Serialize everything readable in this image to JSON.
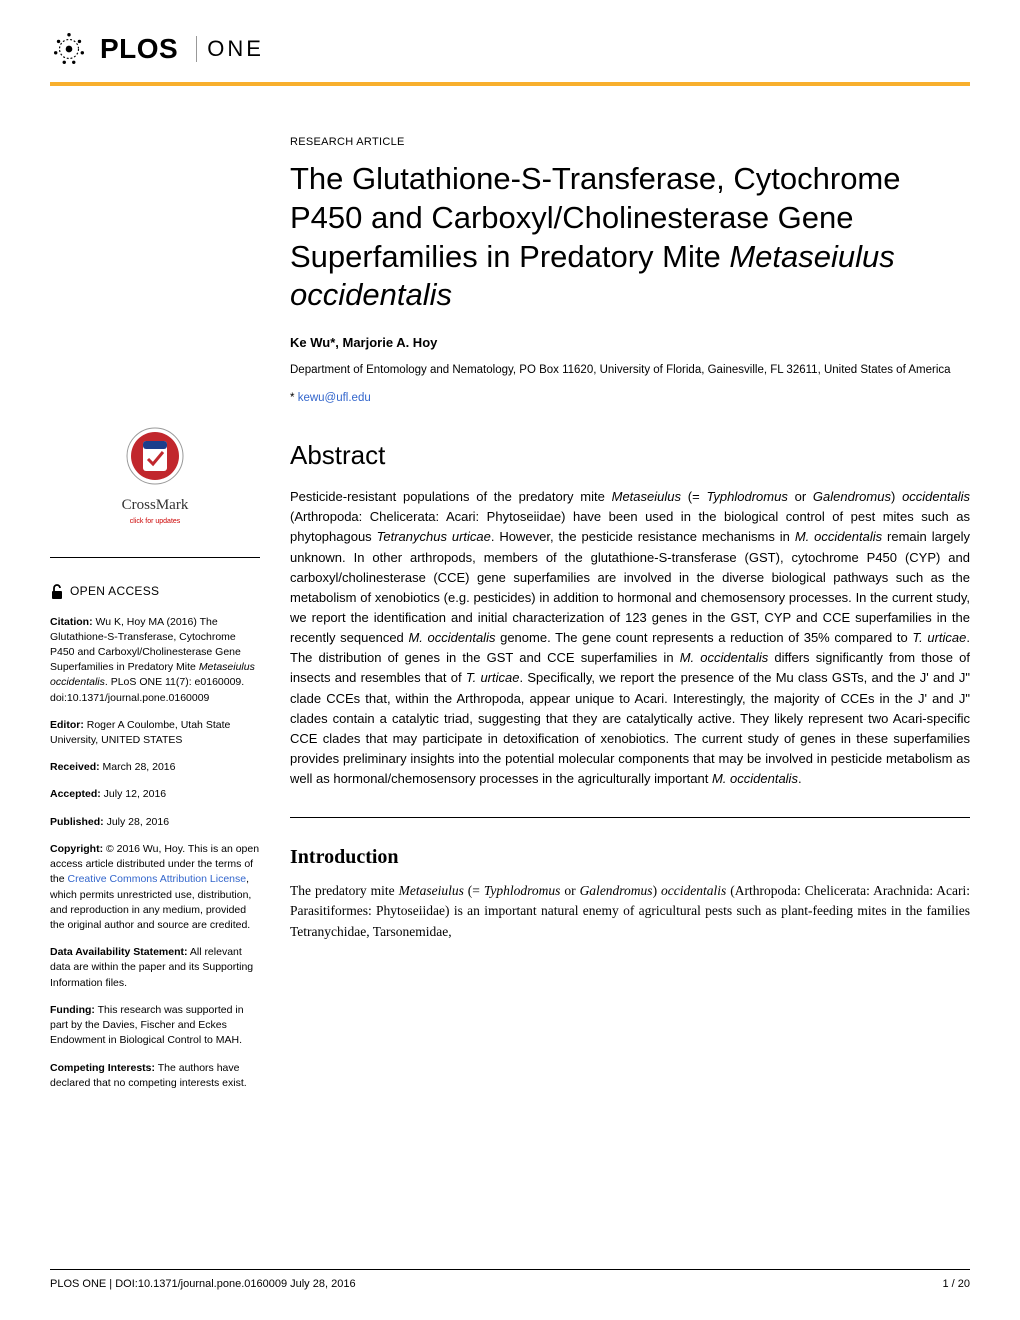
{
  "journal": {
    "logo_primary": "PLOS",
    "logo_secondary": "ONE",
    "accent_color": "#f8af2d"
  },
  "article": {
    "type": "RESEARCH ARTICLE",
    "title_pre": "The Glutathione-S-Transferase, Cytochrome P450 and Carboxyl/Cholinesterase Gene Superfamilies in Predatory Mite ",
    "title_ital": "Metaseiulus occidentalis",
    "authors": "Ke Wu*, Marjorie A. Hoy",
    "affiliation": "Department of Entomology and Nematology, PO Box 11620, University of Florida, Gainesville, FL 32611, United States of America",
    "corr_symbol": "*",
    "corr_email": "kewu@ufl.edu"
  },
  "abstract": {
    "heading": "Abstract",
    "body_html": "Pesticide-resistant populations of the predatory mite <span class='ital'>Metaseiulus</span> (= <span class='ital'>Typhlodromus</span> or <span class='ital'>Galendromus</span>) <span class='ital'>occidentalis</span> (Arthropoda: Chelicerata: Acari: Phytoseiidae) have been used in the biological control of pest mites such as phytophagous <span class='ital'>Tetranychus urticae</span>. However, the pesticide resistance mechanisms in <span class='ital'>M. occidentalis</span> remain largely unknown. In other arthropods, members of the glutathione-S-transferase (GST), cytochrome P450 (CYP) and carboxyl/cholinesterase (CCE) gene superfamilies are involved in the diverse biological pathways such as the metabolism of xenobiotics (e.g. pesticides) in addition to hormonal and chemosensory processes. In the current study, we report the identification and initial characterization of 123 genes in the GST, CYP and CCE superfamilies in the recently sequenced <span class='ital'>M. occidentalis</span> genome. The gene count represents a reduction of 35% compared to <span class='ital'>T. urticae</span>. The distribution of genes in the GST and CCE superfamilies in <span class='ital'>M. occidentalis</span> differs significantly from those of insects and resembles that of <span class='ital'>T. urticae</span>. Specifically, we report the presence of the Mu class GSTs, and the J' and J\" clade CCEs that, within the Arthropoda, appear unique to Acari. Interestingly, the majority of CCEs in the J' and J\" clades contain a catalytic triad, suggesting that they are catalytically active. They likely represent two Acari-specific CCE clades that may participate in detoxification of xenobiotics. The current study of genes in these superfamilies provides preliminary insights into the potential molecular components that may be involved in pesticide metabolism as well as hormonal/chemosensory processes in the agriculturally important <span class='ital'>M. occidentalis</span>."
  },
  "intro": {
    "heading": "Introduction",
    "body_html": "The predatory mite <span class='ital'>Metaseiulus</span> (= <span class='ital'>Typhlodromus</span> or <span class='ital'>Galendromus</span>) <span class='ital'>occidentalis</span> (Arthropoda: Chelicerata: Arachnida: Acari: Parasitiformes: Phytoseiidae) is an important natural enemy of agricultural pests such as plant-feeding mites in the families Tetranychidae, Tarsonemidae,"
  },
  "sidebar": {
    "crossmark": {
      "label": "CrossMark",
      "sub": "click for updates"
    },
    "open_access": "OPEN ACCESS",
    "citation_label": "Citation:",
    "citation": " Wu K, Hoy MA (2016) The Glutathione-S-Transferase, Cytochrome P450 and Carboxyl/Cholinesterase Gene Superfamilies in Predatory Mite <i>Metaseiulus occidentalis</i>. PLoS ONE 11(7): e0160009. doi:10.1371/journal.pone.0160009",
    "editor_label": "Editor:",
    "editor": " Roger A Coulombe, Utah State University, UNITED STATES",
    "received_label": "Received:",
    "received": " March 28, 2016",
    "accepted_label": "Accepted:",
    "accepted": " July 12, 2016",
    "published_label": "Published:",
    "published": " July 28, 2016",
    "copyright_label": "Copyright:",
    "copyright_pre": " © 2016 Wu, Hoy. This is an open access article distributed under the terms of the ",
    "copyright_link": "Creative Commons Attribution License",
    "copyright_post": ", which permits unrestricted use, distribution, and reproduction in any medium, provided the original author and source are credited.",
    "data_label": "Data Availability Statement:",
    "data": " All relevant data are within the paper and its Supporting Information files.",
    "funding_label": "Funding:",
    "funding": " This research was supported in part by the Davies, Fischer and Eckes Endowment in Biological Control to MAH.",
    "competing_label": "Competing Interests:",
    "competing": " The authors have declared that no competing interests exist."
  },
  "footer": {
    "left": "PLOS ONE | DOI:10.1371/journal.pone.0160009    July 28, 2016",
    "right": "1 / 20"
  },
  "colors": {
    "link": "#3366cc",
    "text": "#000000",
    "crossmark_red": "#c1272d",
    "crossmark_blue": "#1b3e8c"
  }
}
